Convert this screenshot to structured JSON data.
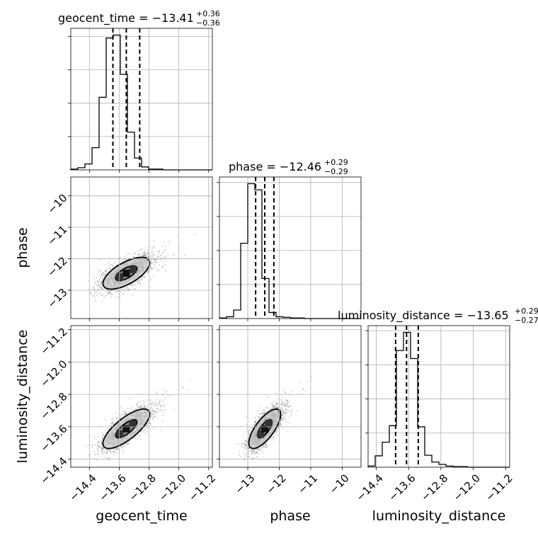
{
  "chart_data": {
    "type": "corner",
    "parameters": [
      {
        "name": "geocent_time",
        "axis_label": "geocent_time",
        "title": "geocent_time = −13.41",
        "title_sup": "+0.36",
        "title_sub": "−0.36",
        "median": -13.41,
        "q16": -13.77,
        "q84": -13.05,
        "range": [
          -14.9,
          -11.1
        ],
        "ticks": [
          -14.4,
          -13.6,
          -12.8,
          -12.0,
          -11.2
        ],
        "tick_labels": [
          "−14.4",
          "−13.6",
          "−12.8",
          "−12.0",
          "−11.2"
        ],
        "hist_edges_start": -14.9,
        "hist_bin_width": 0.19,
        "hist_counts": [
          1,
          3,
          8,
          30,
          98,
          178,
          182,
          129,
          51,
          16,
          4,
          1,
          1,
          0,
          0,
          0,
          0,
          0,
          0,
          0
        ]
      },
      {
        "name": "phase",
        "axis_label": "phase",
        "title": "phase = −12.46",
        "title_sup": "+0.29",
        "title_sub": "−0.29",
        "median": -12.46,
        "q16": -12.75,
        "q84": -12.17,
        "range": [
          -13.9,
          -9.4
        ],
        "ticks": [
          -13,
          -12,
          -11,
          -10
        ],
        "tick_labels": [
          "−13",
          "−12",
          "−11",
          "−10"
        ],
        "hist_edges_start": -13.9,
        "hist_bin_width": 0.225,
        "hist_counts": [
          1,
          3,
          14,
          124,
          222,
          212,
          66,
          10,
          3,
          2,
          1,
          1,
          0,
          0,
          0,
          0,
          0,
          0,
          0,
          0
        ]
      },
      {
        "name": "luminosity_distance",
        "axis_label": "luminosity_distance",
        "title": "luminosity_distance = −13.65",
        "title_sup": "+0.29",
        "title_sub": "−0.27",
        "median": -13.65,
        "q16": -13.92,
        "q84": -13.36,
        "range": [
          -14.6,
          -11.1
        ],
        "ticks": [
          -14.4,
          -13.6,
          -12.8,
          -12.0,
          -11.2
        ],
        "tick_labels": [
          "−14.4",
          "−13.6",
          "−12.8",
          "−12.0",
          "−11.2"
        ],
        "hist_edges_start": -14.6,
        "hist_bin_width": 0.175,
        "hist_counts": [
          2,
          20,
          44,
          73,
          205,
          237,
          191,
          71,
          21,
          9,
          5,
          2,
          1,
          1,
          0,
          0,
          0,
          0,
          0,
          0
        ]
      }
    ],
    "pairs": [
      {
        "x": "geocent_time",
        "y": "phase",
        "correlation": 0.65,
        "x_mean": -13.41,
        "x_std": 0.36,
        "y_mean": -12.46,
        "y_std": 0.29
      },
      {
        "x": "geocent_time",
        "y": "luminosity_distance",
        "correlation": 0.75,
        "x_mean": -13.41,
        "x_std": 0.36,
        "y_mean": -13.65,
        "y_std": 0.28
      },
      {
        "x": "phase",
        "y": "luminosity_distance",
        "correlation": 0.72,
        "x_mean": -12.46,
        "x_std": 0.29,
        "y_mean": -13.65,
        "y_std": 0.28
      }
    ],
    "grid": true,
    "quantile_lines": "dashed"
  },
  "colors": {
    "hist": "#000000",
    "scatter": "#888888",
    "contour": "#000000",
    "grid": "#b0b0b0"
  }
}
